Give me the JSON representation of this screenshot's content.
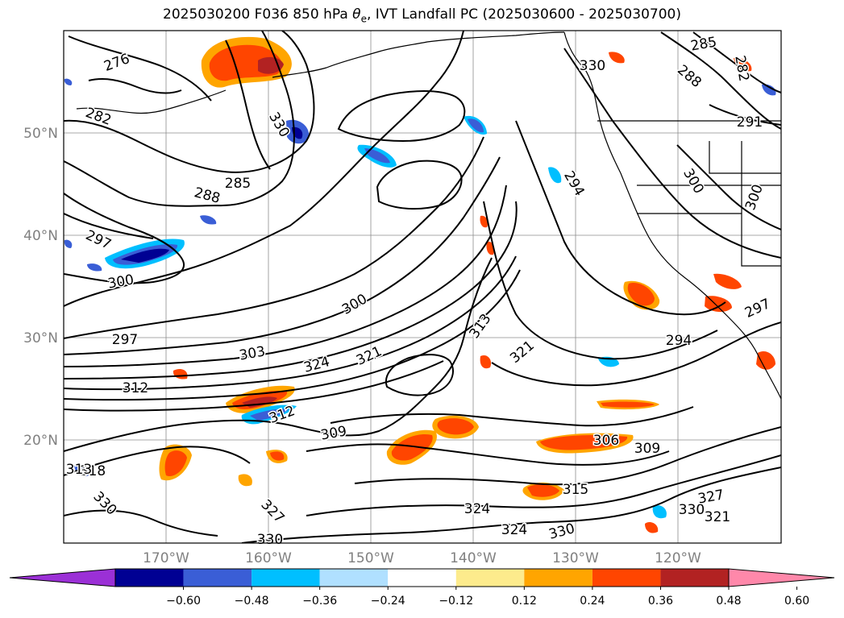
{
  "title": {
    "prefix": "2025030200 F036 850 hPa ",
    "theta": "θ",
    "theta_sub": "e",
    "suffix": ", IVT Landfall PC (2025030600 - 2025030700)"
  },
  "map": {
    "lat_labels": [
      "50°N",
      "40°N",
      "30°N",
      "20°N"
    ],
    "lon_labels": [
      "170°W",
      "160°W",
      "150°W",
      "140°W",
      "130°W",
      "120°W"
    ],
    "contour_labels": [
      "276",
      "282",
      "285",
      "288",
      "297",
      "300",
      "297",
      "303",
      "312",
      "324",
      "321",
      "318",
      "313",
      "330",
      "327",
      "309",
      "312",
      "300",
      "324",
      "321",
      "313",
      "294",
      "285",
      "288",
      "291",
      "282",
      "300",
      "300",
      "294",
      "297",
      "306",
      "309",
      "315",
      "324",
      "330",
      "330",
      "330",
      "327",
      "321",
      "330",
      "330"
    ],
    "colors": {
      "contour": "#000000",
      "grid": "#808080",
      "axis_label": "#808080"
    }
  },
  "colorbar": {
    "ticks": [
      "−0.60",
      "−0.48",
      "−0.36",
      "−0.24",
      "−0.12",
      "0.12",
      "0.24",
      "0.36",
      "0.48",
      "0.60"
    ],
    "colors": [
      "#9b30d6",
      "#000093",
      "#3a5ed6",
      "#00bfff",
      "#b0e0ff",
      "#ffffff",
      "#fdeb8c",
      "#ffa500",
      "#ff4500",
      "#b22222",
      "#ff88aa"
    ]
  }
}
